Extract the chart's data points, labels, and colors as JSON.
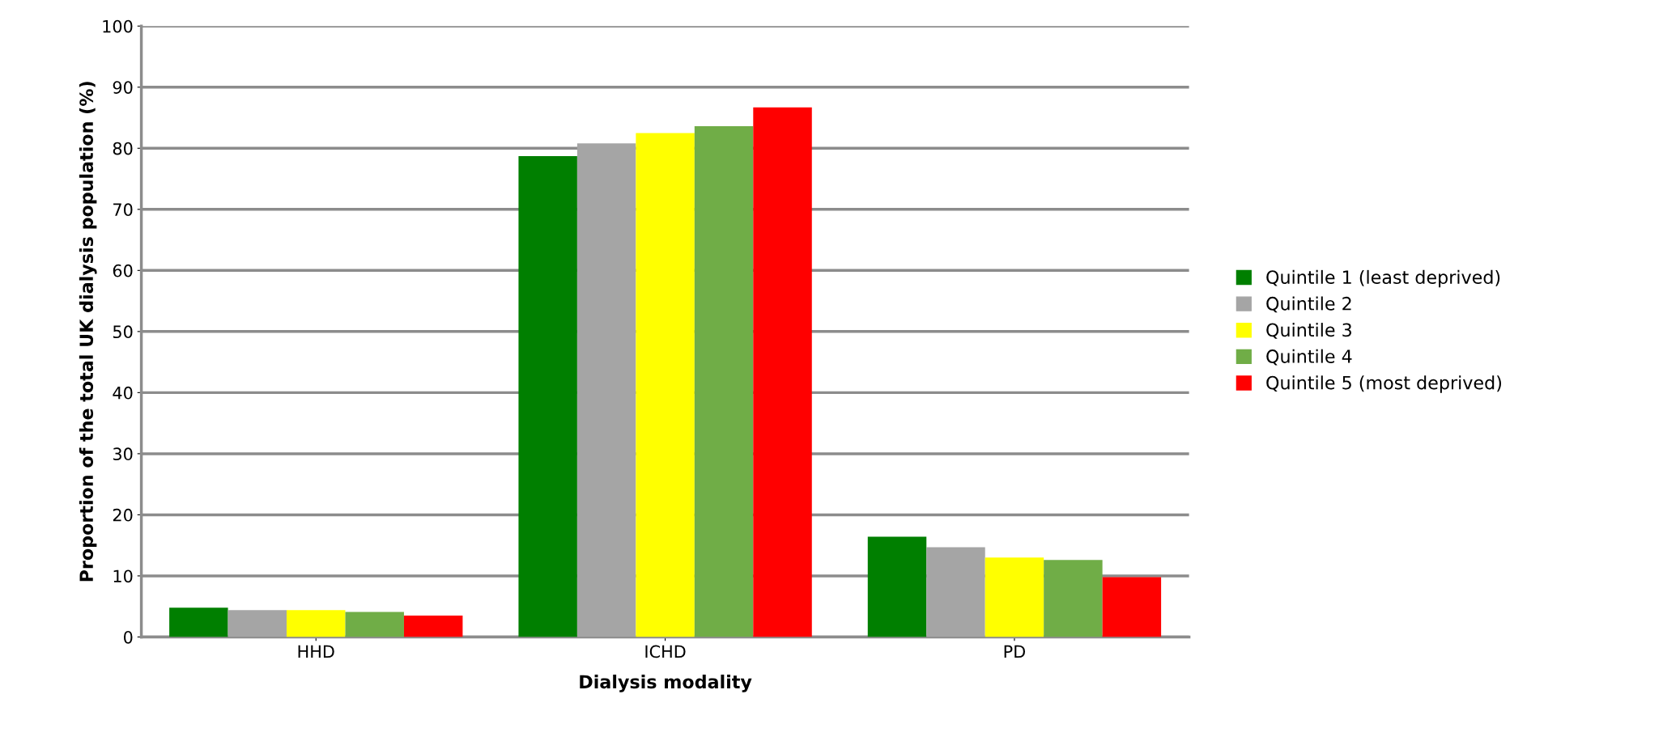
{
  "chart_data": {
    "type": "bar",
    "xlabel": "Dialysis modality",
    "ylabel": "Proportion of the total UK dialysis population (%)",
    "categories": [
      "HHD",
      "ICHD",
      "PD"
    ],
    "series": [
      {
        "name": "Quintile 1 (least deprived)",
        "color": "#007f00",
        "values": [
          4.8,
          78.7,
          16.4
        ]
      },
      {
        "name": "Quintile 2",
        "color": "#a5a5a5",
        "values": [
          4.4,
          80.8,
          14.7
        ]
      },
      {
        "name": "Quintile 3",
        "color": "#ffff00",
        "values": [
          4.4,
          82.5,
          13.0
        ]
      },
      {
        "name": "Quintile 4",
        "color": "#70ad47",
        "values": [
          4.1,
          83.6,
          12.6
        ]
      },
      {
        "name": "Quintile 5 (most deprived)",
        "color": "#ff0000",
        "values": [
          3.5,
          86.7,
          9.8
        ]
      }
    ],
    "ylim": [
      0,
      100
    ],
    "yticks": [
      0,
      10,
      20,
      30,
      40,
      50,
      60,
      70,
      80,
      90,
      100
    ],
    "grid": "y",
    "legend": "right"
  }
}
